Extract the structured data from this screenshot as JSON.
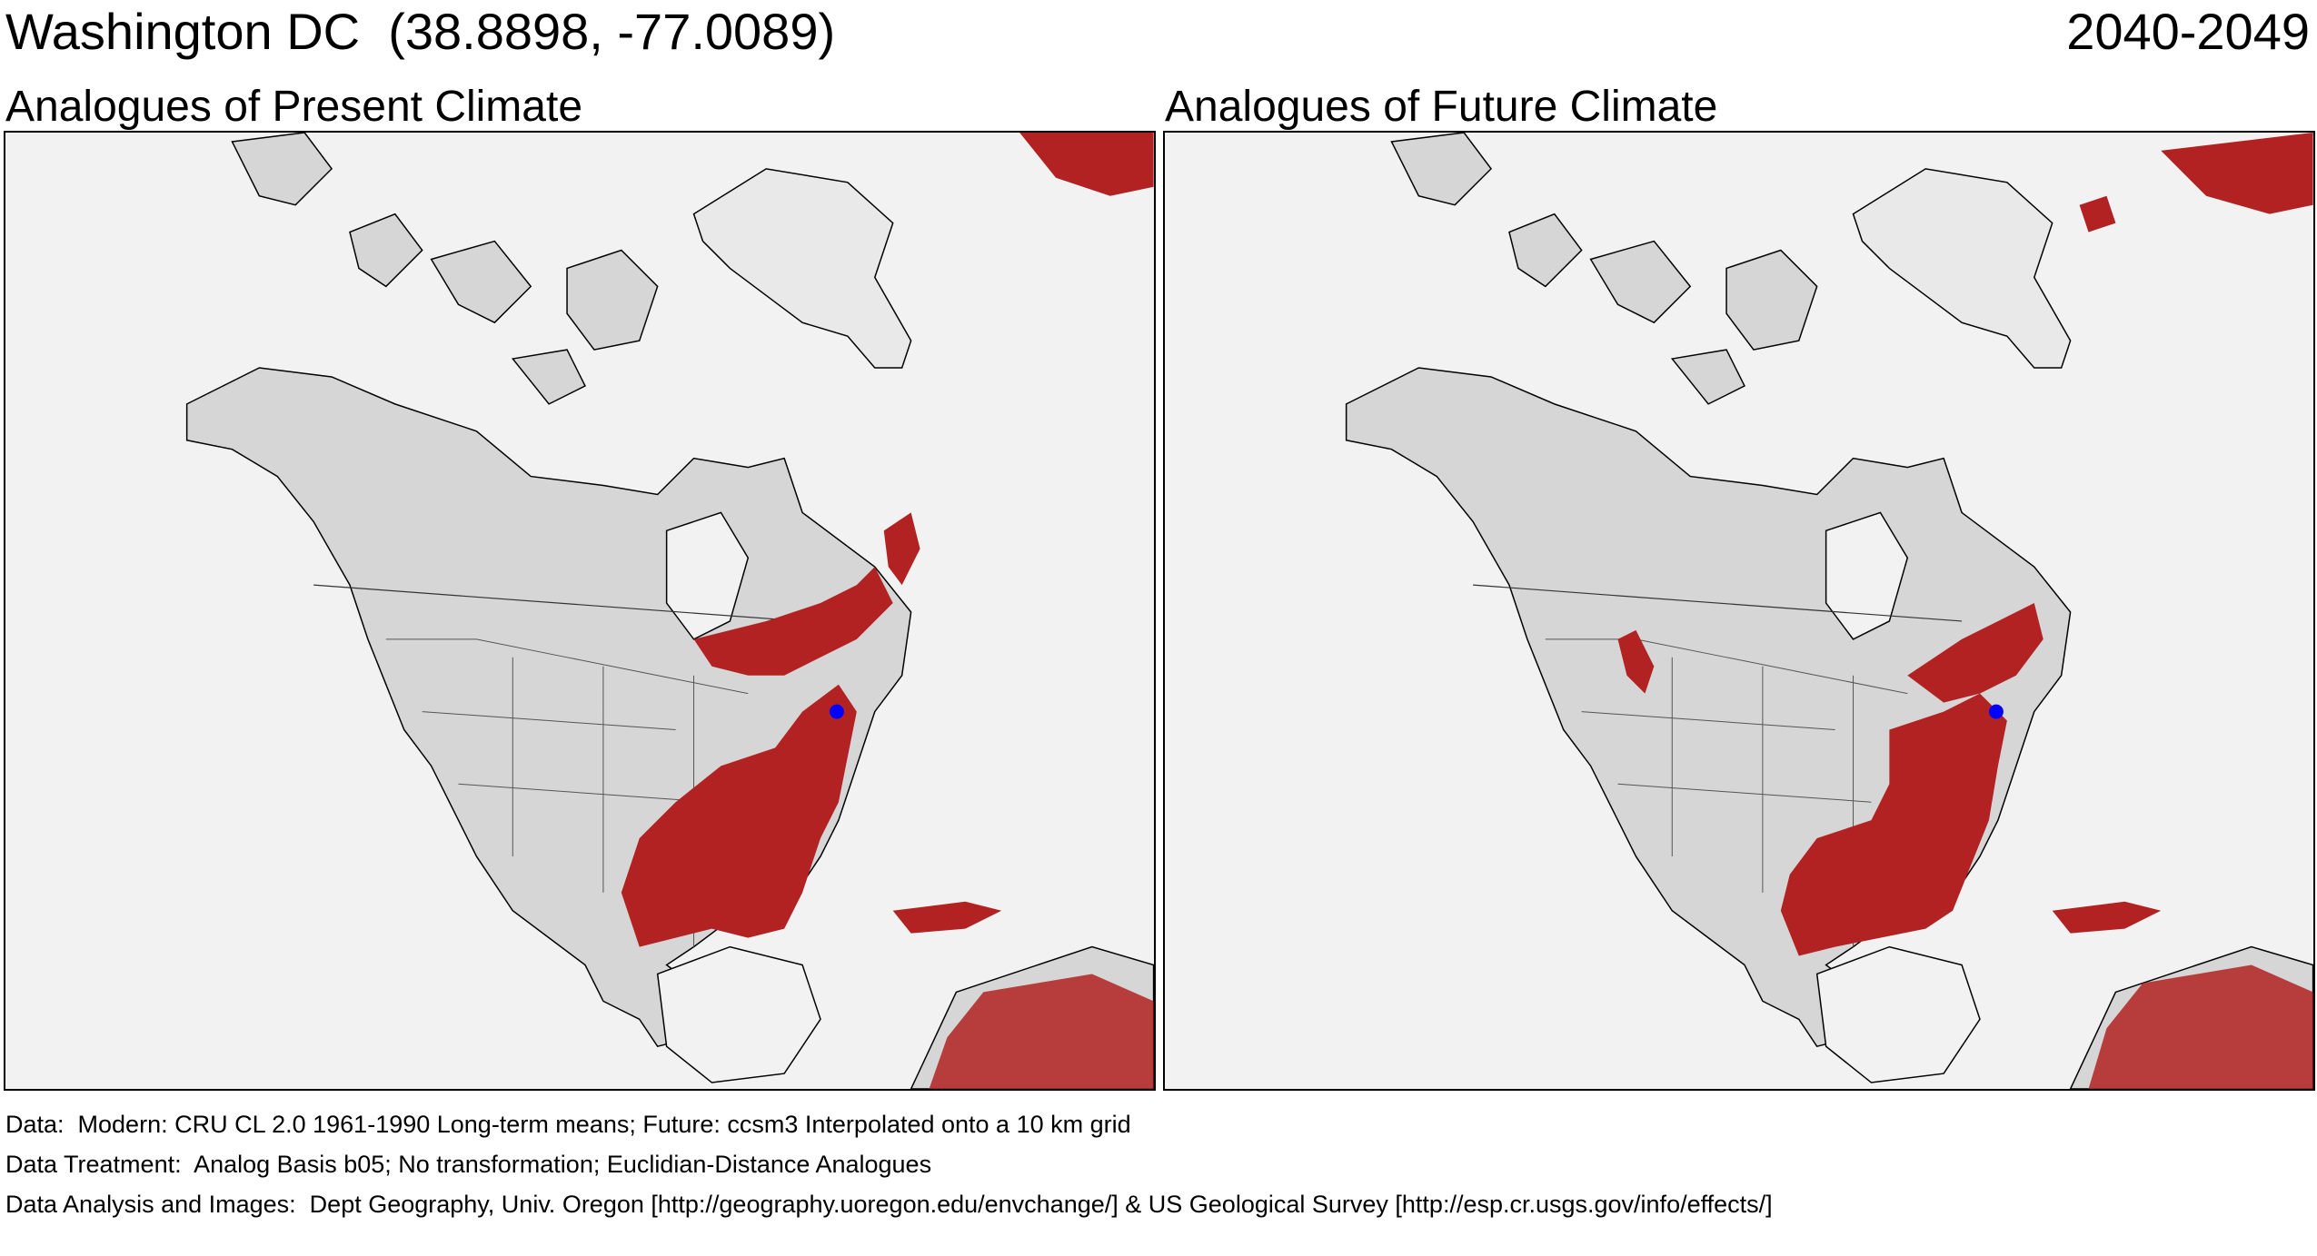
{
  "header": {
    "place": "Washington DC  (38.8898, -77.0089)",
    "period": "2040-2049"
  },
  "panels": [
    {
      "title": "Analogues of Present Climate"
    },
    {
      "title": "Analogues of Future Climate"
    }
  ],
  "colors": {
    "analogue_fill": "#b22222",
    "land_fill": "#d6d6d6",
    "ocean_fill": "#f2f2f2",
    "ice_fill": "#e9e9e9",
    "boundary_stroke": "#000000",
    "target_point": "#0000ff"
  },
  "icons": {
    "target_marker": "blue-dot-marker"
  },
  "footer": {
    "data": "Data:  Modern: CRU CL 2.0 1961-1990 Long-term means; Future: ccsm3 Interpolated onto a 10 km grid",
    "treatment": "Data Treatment:  Analog Basis b05; No transformation; Euclidian-Distance Analogues",
    "analysis": "Data Analysis and Images:  Dept Geography, Univ. Oregon [http://geography.uoregon.edu/envchange/] & US Geological Survey [http://esp.cr.usgs.gov/info/effects/]"
  }
}
